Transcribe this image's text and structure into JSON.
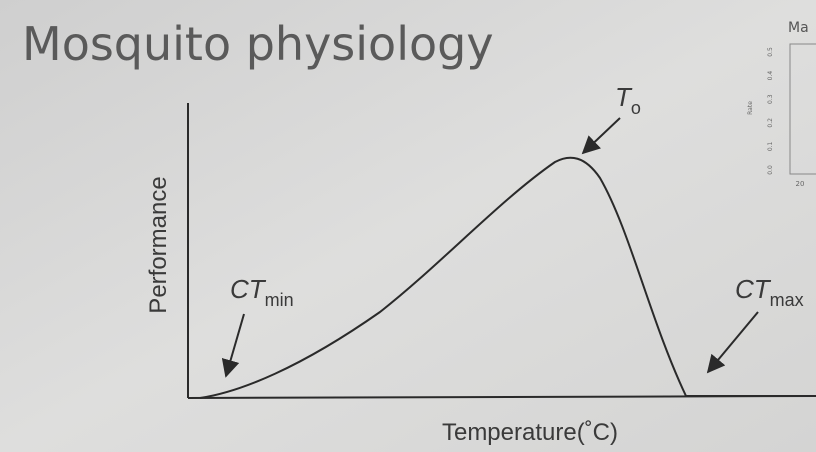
{
  "title": "Mosquito physiology",
  "diagram": {
    "y_label": "Performance",
    "x_label": "Temperature(˚C)",
    "annotations": [
      {
        "main": "CT",
        "sub": "min"
      },
      {
        "main": "T",
        "sub": "o"
      },
      {
        "main": "CT",
        "sub": "max"
      }
    ]
  },
  "inset": {
    "title": "Ma",
    "y_label": "Rate",
    "y_ticks": [
      "0.0",
      "0.1",
      "0.2",
      "0.3",
      "0.4",
      "0.5"
    ],
    "x_ticks": [
      "20"
    ]
  }
}
